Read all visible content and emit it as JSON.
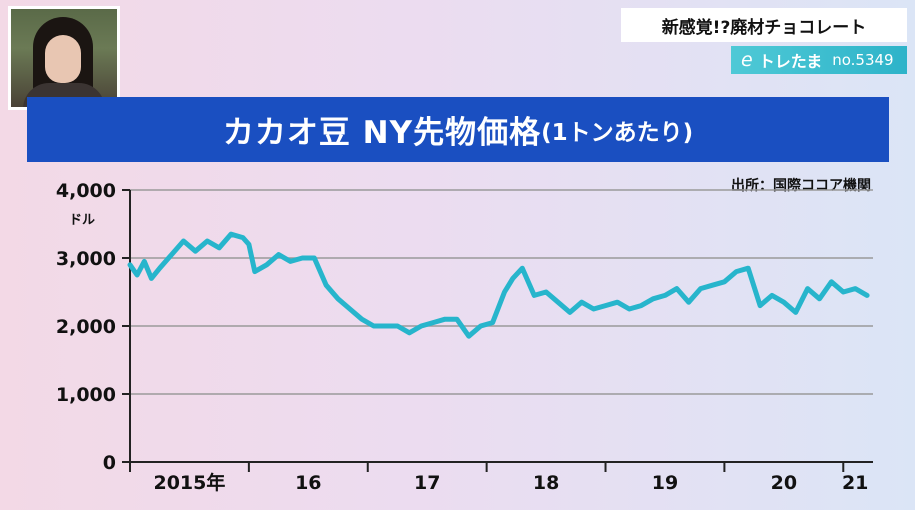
{
  "header": {
    "topic": "新感覚!?廃材チョコレート",
    "series_mark": "e",
    "series_name": "トレたま",
    "series_number": "no.5349"
  },
  "colors": {
    "title_bg": "#1a4fc1",
    "line": "#27b5cc",
    "grid": "#9a9a9a",
    "axis": "#222222"
  },
  "chart_data": {
    "type": "line",
    "title": "カカオ豆 NY先物価格",
    "subtitle": "(1トンあたり)",
    "source": "出所：国際ココア機関",
    "ylabel": "ドル",
    "ylim": [
      0,
      4000
    ],
    "ytick_labels": [
      "0",
      "1,000",
      "2,000",
      "3,000",
      "4,000"
    ],
    "yticks": [
      0,
      1000,
      2000,
      3000,
      4000
    ],
    "xlim": [
      2015.0,
      2021.25
    ],
    "xtick_labels": [
      "2015年",
      "16",
      "17",
      "18",
      "19",
      "20",
      "21"
    ],
    "xtick_positions": [
      2015.5,
      2016.5,
      2017.5,
      2018.5,
      2019.5,
      2020.5,
      2021.1
    ],
    "year_boundaries": [
      2015,
      2016,
      2017,
      2018,
      2019,
      2020,
      2021
    ],
    "grid": true,
    "series": [
      {
        "x": [
          2015.0,
          2015.06,
          2015.12,
          2015.18,
          2015.25,
          2015.35,
          2015.45,
          2015.55,
          2015.65,
          2015.75,
          2015.85,
          2015.95,
          2016.0,
          2016.05,
          2016.15,
          2016.25,
          2016.35,
          2016.45,
          2016.55,
          2016.65,
          2016.75,
          2016.85,
          2016.95,
          2017.05,
          2017.15,
          2017.25,
          2017.35,
          2017.45,
          2017.55,
          2017.65,
          2017.75,
          2017.85,
          2017.95,
          2018.05,
          2018.15,
          2018.22,
          2018.3,
          2018.4,
          2018.5,
          2018.6,
          2018.7,
          2018.8,
          2018.9,
          2019.0,
          2019.1,
          2019.2,
          2019.3,
          2019.4,
          2019.5,
          2019.6,
          2019.7,
          2019.8,
          2019.9,
          2020.0,
          2020.1,
          2020.2,
          2020.3,
          2020.4,
          2020.5,
          2020.6,
          2020.7,
          2020.8,
          2020.9,
          2021.0,
          2021.1,
          2021.2
        ],
        "y": [
          2900,
          2750,
          2950,
          2700,
          2850,
          3050,
          3250,
          3100,
          3250,
          3150,
          3350,
          3300,
          3200,
          2800,
          2900,
          3050,
          2950,
          3000,
          3000,
          2600,
          2400,
          2250,
          2100,
          2000,
          2000,
          2000,
          1900,
          2000,
          2050,
          2100,
          2100,
          1850,
          2000,
          2050,
          2500,
          2700,
          2850,
          2450,
          2500,
          2350,
          2200,
          2350,
          2250,
          2300,
          2350,
          2250,
          2300,
          2400,
          2450,
          2550,
          2350,
          2550,
          2600,
          2650,
          2800,
          2850,
          2300,
          2450,
          2350,
          2200,
          2550,
          2400,
          2650,
          2500,
          2550,
          2450
        ]
      }
    ]
  }
}
